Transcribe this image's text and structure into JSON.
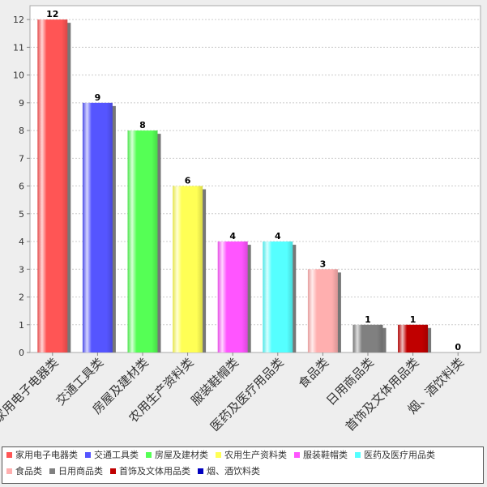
{
  "chart_data": {
    "type": "bar",
    "categories": [
      "家用电子电器类",
      "交通工具类",
      "房屋及建材类",
      "农用生产资料类",
      "服装鞋帽类",
      "医药及医疗用品类",
      "食品类",
      "日用商品类",
      "首饰及文体用品类",
      "烟、酒饮料类"
    ],
    "values": [
      12,
      9,
      8,
      6,
      4,
      4,
      3,
      1,
      1,
      0
    ],
    "data_labels": [
      "12",
      "9",
      "8",
      "6",
      "4",
      "4",
      "3",
      "1",
      "1",
      "0"
    ],
    "colors": [
      "#ff5555",
      "#5555ff",
      "#55ff55",
      "#ffff55",
      "#ff55ff",
      "#55ffff",
      "#ffafaf",
      "#808080",
      "#c00000",
      "#0000c0"
    ],
    "ylim": [
      0,
      12.5
    ],
    "yticks": [
      0,
      1,
      2,
      3,
      4,
      5,
      6,
      7,
      8,
      9,
      10,
      11,
      12
    ],
    "grid": true,
    "legend_position": "bottom"
  },
  "legend": {
    "items": [
      "家用电子电器类",
      "交通工具类",
      "房屋及建材类",
      "农用生产资料类",
      "服装鞋帽类",
      "医药及医疗用品类",
      "食品类",
      "日用商品类",
      "首饰及文体用品类",
      "烟、酒饮料类"
    ]
  }
}
